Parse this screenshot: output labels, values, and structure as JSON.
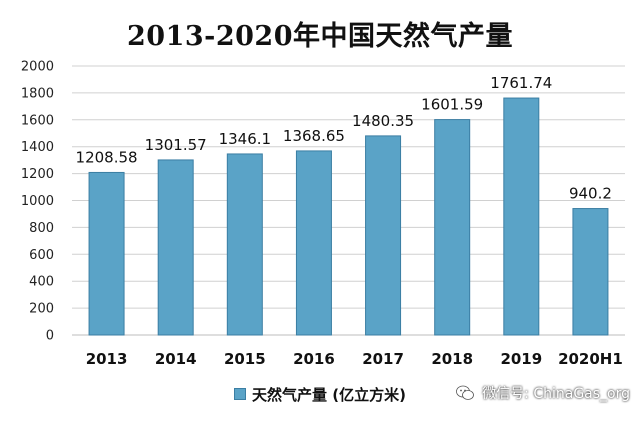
{
  "chart_data": {
    "type": "bar",
    "title": "2013-2020年中国天然气产量",
    "categories": [
      "2013",
      "2014",
      "2015",
      "2016",
      "2017",
      "2018",
      "2019",
      "2020H1"
    ],
    "series": [
      {
        "name": "天然气产量 (亿立方米)",
        "values": [
          1208.58,
          1301.57,
          1346.1,
          1368.65,
          1480.35,
          1601.59,
          1761.74,
          940.2
        ],
        "labels": [
          "1208.58",
          "1301.57",
          "1346.1",
          "1368.65",
          "1480.35",
          "1601.59",
          "1761.74",
          "940.2"
        ]
      }
    ],
    "yticks": [
      "0",
      "200",
      "400",
      "600",
      "800",
      "1000",
      "1200",
      "1400",
      "1600",
      "1800",
      "2000"
    ],
    "ylim": [
      0,
      2000
    ],
    "grid": true,
    "legend_position": "bottom",
    "colors": {
      "bar": "#5aa3c7",
      "bar_edge": "#3b7ea3",
      "grid": "#d0d0d0"
    }
  },
  "watermark": {
    "text": "微信号: ChinaGas_org",
    "icon": "wechat-icon"
  }
}
